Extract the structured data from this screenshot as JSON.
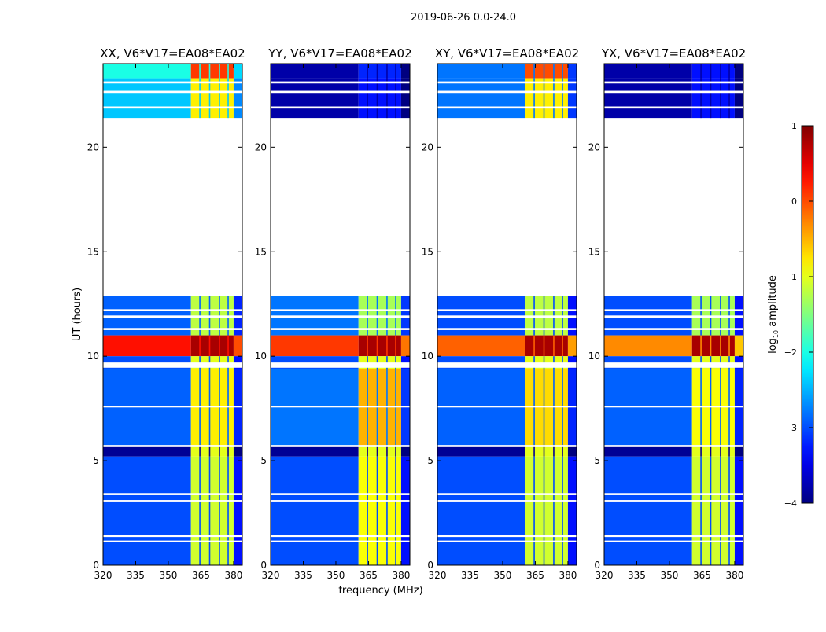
{
  "chart_data": {
    "type": "heatmap",
    "title": "2019-06-26 0.0-24.0",
    "xlabel": "frequency (MHz)",
    "ylabel": "UT (hours)",
    "xlim": [
      320,
      384
    ],
    "ylim": [
      0,
      24
    ],
    "xticks": [
      320,
      335,
      350,
      365,
      380
    ],
    "yticks": [
      0,
      5,
      10,
      15,
      20
    ],
    "panels": [
      {
        "title": "XX, V6*V17=EA08*EA02"
      },
      {
        "title": "YY, V6*V17=EA08*EA02"
      },
      {
        "title": "XY, V6*V17=EA08*EA02"
      },
      {
        "title": "YX, V6*V17=EA08*EA02"
      }
    ],
    "rfi_band_mhz": [
      360.4,
      380.0
    ],
    "rfi_dark_channels_mhz": [
      364.5,
      369.0,
      373.5,
      377.5
    ],
    "time_segments": [
      {
        "t": [
          23.3,
          24.0
        ],
        "background": [
          -2.0,
          -3.8,
          -2.8,
          -3.8
        ],
        "band": [
          0.1,
          -3.2,
          0.0,
          -3.3
        ]
      },
      {
        "t": [
          21.4,
          23.3
        ],
        "background": [
          -2.4,
          -3.8,
          -2.8,
          -3.8
        ],
        "band": [
          -0.8,
          -3.3,
          -0.8,
          -3.3
        ]
      },
      {
        "t": [
          11.0,
          12.9
        ],
        "background": [
          -2.9,
          -2.8,
          -3.0,
          -3.0
        ],
        "band": [
          -1.2,
          -1.3,
          -1.2,
          -1.3
        ]
      },
      {
        "t": [
          10.0,
          11.0
        ],
        "background": [
          0.3,
          0.1,
          -0.1,
          -0.3
        ],
        "band": [
          0.8,
          0.8,
          0.8,
          0.8
        ]
      },
      {
        "t": [
          9.4,
          10.0
        ],
        "background": [
          -3.0,
          -3.0,
          -3.0,
          -3.0
        ],
        "band": [
          -1.0,
          -1.0,
          -1.0,
          -1.0
        ]
      },
      {
        "t": [
          5.7,
          9.4
        ],
        "background": [
          -2.9,
          -2.8,
          -2.9,
          -2.9
        ],
        "band": [
          -0.8,
          -0.5,
          -0.7,
          -0.9
        ]
      },
      {
        "t": [
          5.2,
          5.7
        ],
        "background": [
          -3.9,
          -3.9,
          -3.9,
          -3.9
        ],
        "band": [
          -1.0,
          -1.0,
          -1.0,
          -1.0
        ]
      },
      {
        "t": [
          0.0,
          5.2
        ],
        "background": [
          -3.0,
          -3.0,
          -3.0,
          -3.0
        ],
        "band": [
          -1.1,
          -0.9,
          -1.1,
          -1.1
        ]
      }
    ],
    "flagged_gaps_hours": [
      [
        23.05,
        23.15
      ],
      [
        22.6,
        22.7
      ],
      [
        21.85,
        21.95
      ],
      [
        12.15,
        12.25
      ],
      [
        11.85,
        11.95
      ],
      [
        11.25,
        11.35
      ],
      [
        9.45,
        9.7
      ],
      [
        7.55,
        7.62
      ],
      [
        5.65,
        5.75
      ],
      [
        3.35,
        3.45
      ],
      [
        3.05,
        3.12
      ],
      [
        1.35,
        1.45
      ],
      [
        1.1,
        1.18
      ]
    ],
    "colorbar": {
      "label_prefix": "log",
      "label_sub": "10",
      "label_suffix": " amplitude",
      "range": [
        -4,
        1
      ],
      "ticks": [
        1,
        0,
        -1,
        -2,
        -3,
        -4
      ],
      "tick_labels": [
        "1",
        "0",
        "−1",
        "−2",
        "−3",
        "−4"
      ],
      "colormap": "jet"
    }
  }
}
